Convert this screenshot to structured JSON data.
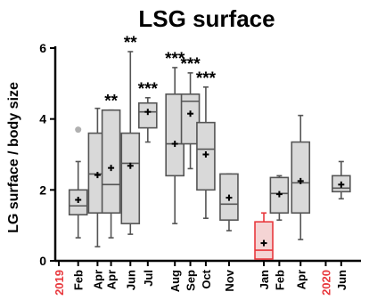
{
  "chart_data": {
    "type": "box",
    "title": "LSG surface",
    "ylabel": "LG surface / body size",
    "xlabel": "",
    "ylim": [
      0,
      6
    ],
    "yticks": [
      0,
      2,
      4,
      6
    ],
    "year_labels": [
      {
        "label": "2019",
        "x": 0
      },
      {
        "label": "2020",
        "x": 13.8
      }
    ],
    "colors": {
      "box_fill": "#d9d9d9",
      "box_stroke": "#555555",
      "highlight_fill": "#f4d4d4",
      "highlight_stroke": "#e8383d",
      "year_text": "#e8383d",
      "outlier": "#b0b0b0"
    },
    "groups": [
      {
        "label": "Feb",
        "x": 1,
        "whisker_low": 0.65,
        "q1": 1.3,
        "median": 1.55,
        "q3": 2.0,
        "whisker_high": 2.8,
        "mean": 1.72,
        "outliers": [
          3.7
        ]
      },
      {
        "label": "Apr",
        "x": 2,
        "whisker_low": 0.4,
        "q1": 1.35,
        "median": 2.45,
        "q3": 3.6,
        "whisker_high": 4.3,
        "mean": 2.42,
        "outliers": []
      },
      {
        "label": "Apr",
        "x": 2.7,
        "whisker_low": 0.65,
        "q1": 1.35,
        "median": 2.15,
        "q3": 4.25,
        "whisker_high": 4.25,
        "mean": 2.62,
        "outliers": [],
        "significance": "**"
      },
      {
        "label": "Jun",
        "x": 3.7,
        "whisker_low": 0.75,
        "q1": 1.05,
        "median": 2.75,
        "q3": 3.6,
        "whisker_high": 5.9,
        "mean": 2.68,
        "outliers": [],
        "significance": "**"
      },
      {
        "label": "Jul",
        "x": 4.6,
        "whisker_low": 3.35,
        "q1": 3.75,
        "median": 4.2,
        "q3": 4.45,
        "whisker_high": 4.6,
        "mean": 4.2,
        "outliers": [],
        "significance": "***"
      },
      {
        "label": "Aug",
        "x": 6.0,
        "whisker_low": 1.05,
        "q1": 2.4,
        "median": 3.3,
        "q3": 4.7,
        "whisker_high": 5.45,
        "mean": 3.3,
        "outliers": [],
        "significance": "***"
      },
      {
        "label": "Sep",
        "x": 6.8,
        "whisker_low": 2.6,
        "q1": 3.3,
        "median": 4.5,
        "q3": 4.7,
        "whisker_high": 5.3,
        "mean": 4.15,
        "outliers": [],
        "significance": "***"
      },
      {
        "label": "Oct",
        "x": 7.6,
        "whisker_low": 1.2,
        "q1": 2.0,
        "median": 3.15,
        "q3": 3.9,
        "whisker_high": 4.9,
        "mean": 3.0,
        "outliers": [],
        "significance": "***"
      },
      {
        "label": "Nov",
        "x": 8.8,
        "whisker_low": 0.85,
        "q1": 1.15,
        "median": 1.6,
        "q3": 2.45,
        "whisker_high": 2.45,
        "mean": 1.78,
        "outliers": []
      },
      {
        "label": "Jan",
        "x": 10.6,
        "whisker_low": 0.05,
        "q1": 0.05,
        "median": 0.3,
        "q3": 1.1,
        "whisker_high": 1.35,
        "mean": 0.5,
        "outliers": [],
        "highlight": true
      },
      {
        "label": "Feb",
        "x": 11.4,
        "whisker_low": 1.15,
        "q1": 1.35,
        "median": 1.9,
        "q3": 2.35,
        "whisker_high": 2.4,
        "mean": 1.88,
        "outliers": []
      },
      {
        "label": "Apr",
        "x": 12.5,
        "whisker_low": 0.6,
        "q1": 1.35,
        "median": 2.2,
        "q3": 3.35,
        "whisker_high": 4.1,
        "mean": 2.25,
        "outliers": []
      },
      {
        "label": "Jun",
        "x": 14.6,
        "whisker_low": 1.75,
        "q1": 1.95,
        "median": 2.05,
        "q3": 2.4,
        "whisker_high": 2.8,
        "mean": 2.15,
        "outliers": []
      }
    ]
  }
}
